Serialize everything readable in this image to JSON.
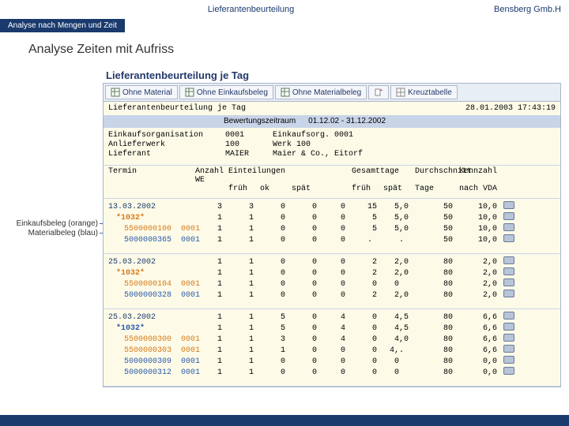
{
  "colors": {
    "brand": "#1a3a6e",
    "orange": "#d67a1a",
    "blue": "#2a5aaa",
    "bodyBg": "#fdfbe8",
    "gridBorder": "#c8d4e8"
  },
  "topbar": {
    "center": "Lieferantenbeurteilung",
    "right": "Bensberg Gmb.H"
  },
  "crumb": "Analyse nach Mengen und Zeit",
  "section_title": "Analyse Zeiten mit Aufriss",
  "sap_title": "Lieferantenbeurteilung je Tag",
  "toolbar": {
    "b1": "Ohne Material",
    "b2": "Ohne Einkaufsbeleg",
    "b3": "Ohne Materialbeleg",
    "b5": "Kreuztabelle"
  },
  "header": {
    "title_line": "Lieferantenbeurteilung je Tag",
    "timestamp": "28.01.2003 17:43:19",
    "sub_label": "Bewertungszeitraum",
    "sub_value": "01.12.02 - 31.12.2002"
  },
  "org": {
    "l1a": "Einkaufsorganisation",
    "l1b": "0001",
    "l2a": "Anlieferwerk",
    "l2b": "100",
    "l3a": "Lieferant",
    "l3b": "MAIER",
    "r1": "Einkaufsorg. 0001",
    "r2": "Werk 100",
    "r3": "Maier & Co., Eitorf"
  },
  "cols": {
    "c1": "Termin",
    "c2a": "Anzahl",
    "c2b": "WE",
    "c3a": "Einteilungen",
    "c3b": "früh",
    "c3c": "ok",
    "c3d": "spät",
    "c4a": "Gesamttage",
    "c4b": "früh",
    "c4c": "spät",
    "c5a": "Durchschnitt",
    "c5b": "Tage",
    "c6a": "Kennzahl",
    "c6b": "nach VDA"
  },
  "groups": [
    {
      "date": "13.03.2002",
      "star": "*1032*",
      "star_class": "star-orange",
      "docs": [
        {
          "cls": "doc-orange",
          "t": "5500000100  0001"
        },
        {
          "cls": "doc-blue",
          "t": "5000000365  0001"
        }
      ],
      "rows": [
        [
          "",
          "3",
          "3",
          "0",
          "0",
          "0",
          "15",
          "5,0",
          "50",
          "10,0"
        ],
        [
          "",
          "1",
          "1",
          "0",
          "0",
          "0",
          " 5",
          "5,0",
          "50",
          "10,0"
        ],
        [
          "",
          "1",
          "1",
          "0",
          "0",
          "0",
          " 5",
          "5,0",
          "50",
          "10,0"
        ],
        [
          "",
          "1",
          "1",
          "0",
          "0",
          "0",
          " . ",
          ". ",
          "50",
          "10,0"
        ]
      ]
    },
    {
      "date": "25.03.2002",
      "star": "*1032*",
      "star_class": "star-orange",
      "docs": [
        {
          "cls": "doc-orange",
          "t": "5500000104  0001"
        },
        {
          "cls": "doc-blue",
          "t": "5000000328  0001"
        }
      ],
      "rows": [
        [
          "",
          "1",
          "1",
          "0",
          "0",
          "0",
          "2",
          "2,0",
          "80",
          "2,0"
        ],
        [
          "",
          "1",
          "1",
          "0",
          "0",
          "0",
          "2",
          "2,0",
          "80",
          "2,0"
        ],
        [
          "",
          "1",
          "1",
          "0",
          "0",
          "0",
          "0",
          "0  ",
          "80",
          "2,0"
        ],
        [
          "",
          "1",
          "1",
          "0",
          "0",
          "0",
          "2",
          "2,0",
          "80",
          "2,0"
        ]
      ]
    },
    {
      "date": "25.03.2002",
      "star": "*1032*",
      "star_class": "star-blue",
      "docs": [
        {
          "cls": "doc-orange",
          "t": "5500000300  0001"
        },
        {
          "cls": "doc-orange",
          "t": "5500000303  0001"
        },
        {
          "cls": "doc-blue",
          "t": "5000000309  0001"
        },
        {
          "cls": "doc-blue",
          "t": "5000000312  0001"
        }
      ],
      "rows": [
        [
          "",
          "1",
          "1",
          "5",
          "0",
          "4",
          "0",
          "4,5",
          "80",
          "6,6"
        ],
        [
          "",
          "1",
          "1",
          "5",
          "0",
          "4",
          "0",
          "4,5",
          "80",
          "6,6"
        ],
        [
          "",
          "1",
          "1",
          "3",
          "0",
          "4",
          "0",
          "4,0",
          "80",
          "6,6"
        ],
        [
          "",
          "1",
          "1",
          "1",
          "0",
          "0",
          "0",
          "4,. ",
          "80",
          "6,6"
        ],
        [
          "",
          "1",
          "1",
          "0",
          "0",
          "0",
          "0",
          "0  ",
          "80",
          "0,0"
        ],
        [
          "",
          "1",
          "1",
          "0",
          "0",
          "0",
          "0",
          "0  ",
          "80",
          "0,0"
        ]
      ]
    }
  ],
  "side": {
    "l1": "Einkaufsbeleg (orange)",
    "l2": "Materialbeleg (blau)"
  }
}
